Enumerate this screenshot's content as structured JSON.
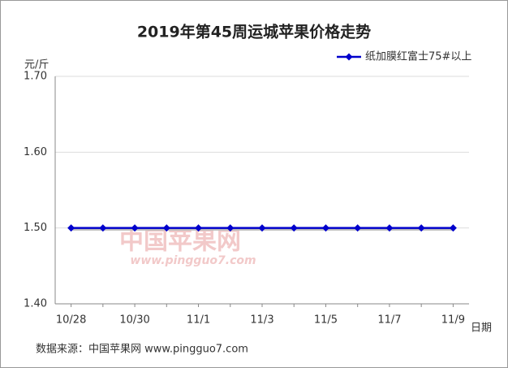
{
  "chart_data": {
    "type": "line",
    "title": "2019年第45周运城苹果价格走势",
    "y_label": "元/斤",
    "x_label": "日期",
    "categories": [
      "10/28",
      null,
      "10/30",
      null,
      "11/1",
      null,
      "11/3",
      null,
      "11/5",
      null,
      "11/7",
      null,
      "11/9"
    ],
    "series": [
      {
        "name": "纸加膜红富士75#以上",
        "color": "#0000cc",
        "values": [
          1.5,
          1.5,
          1.5,
          1.5,
          1.5,
          1.5,
          1.5,
          1.5,
          1.5,
          1.5,
          1.5,
          1.5,
          1.5
        ]
      }
    ],
    "ylim": [
      1.4,
      1.7
    ],
    "yticks": [
      {
        "value": 1.4,
        "label": "1.40"
      },
      {
        "value": 1.5,
        "label": "1.50"
      },
      {
        "value": 1.6,
        "label": "1.60"
      },
      {
        "value": 1.7,
        "label": "1.70"
      }
    ],
    "grid": true,
    "legend": "top-right",
    "watermark": "中国苹果网",
    "watermark_url": "www.pingguo7.com",
    "source": "数据来源：中国苹果网 www.pingguo7.com"
  }
}
